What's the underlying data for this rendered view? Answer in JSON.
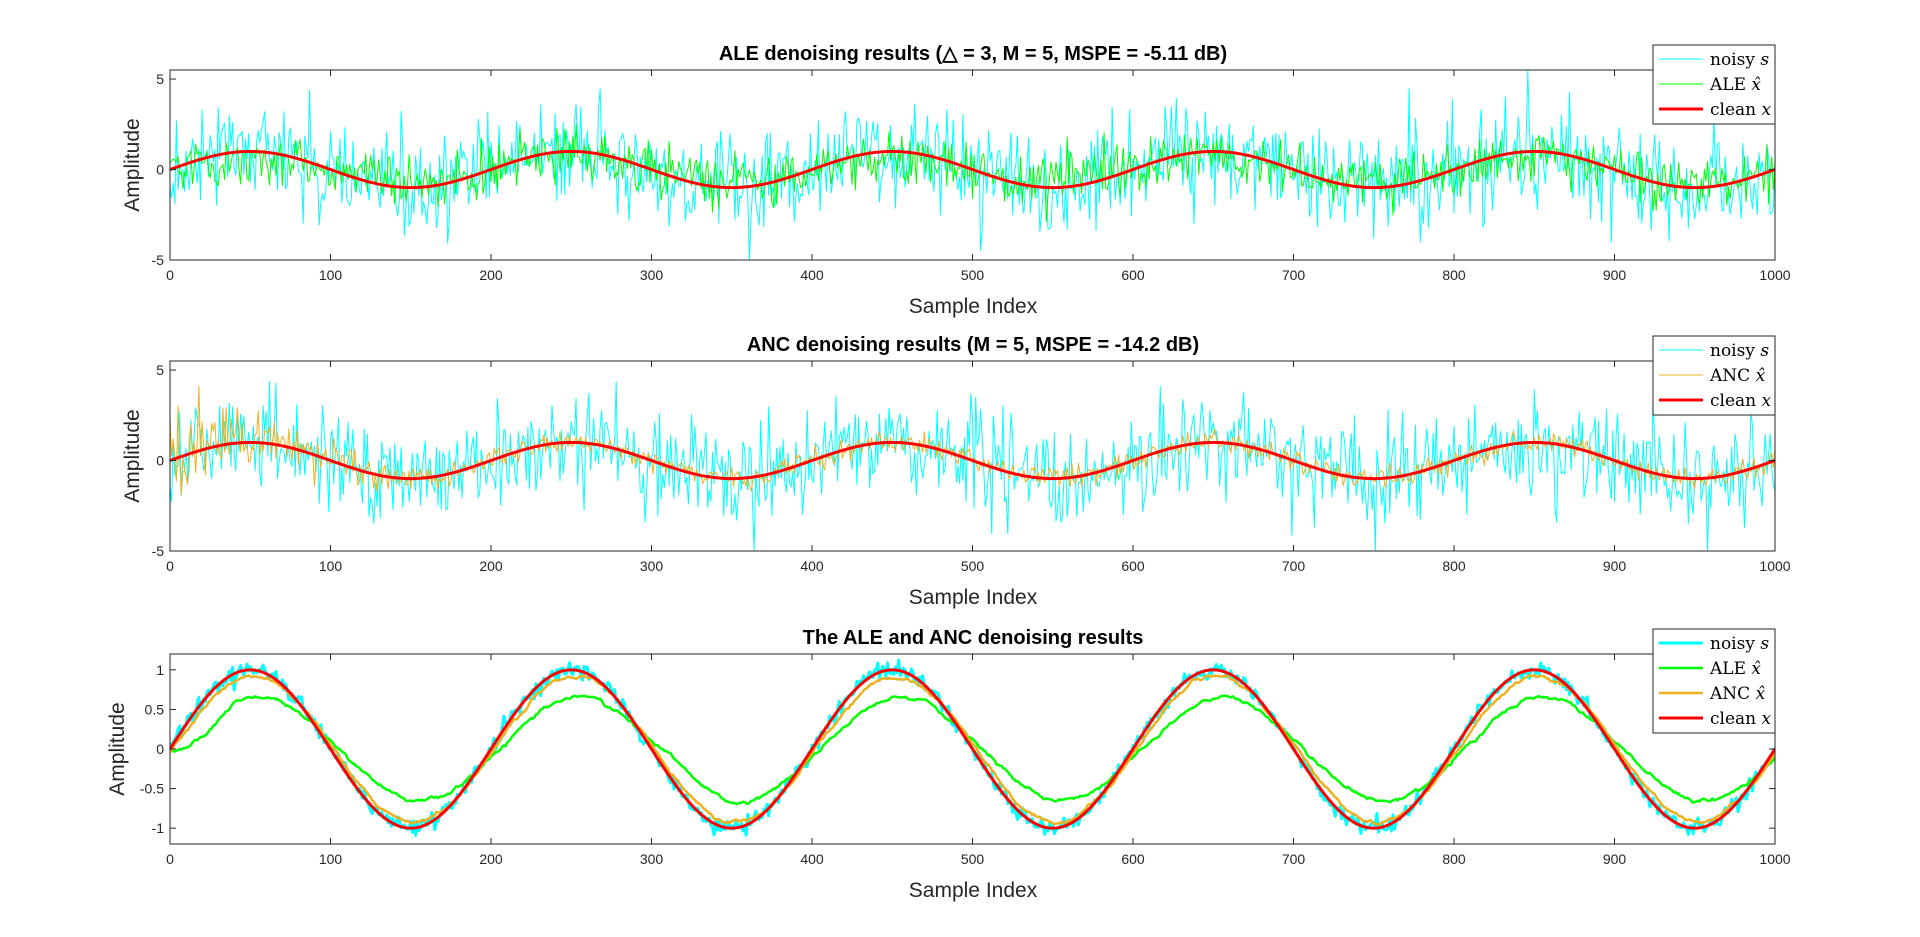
{
  "window": {
    "background": "#ffffff"
  },
  "chart_data": [
    {
      "type": "line",
      "title": "ALE denoising results (△ = 3, M = 5, MSPE = -5.11 dB)",
      "xlabel": "Sample Index",
      "ylabel": "Amplitude",
      "xlim": [
        0,
        1000
      ],
      "ylim": [
        -5,
        5.5
      ],
      "xticks": [
        0,
        100,
        200,
        300,
        400,
        500,
        600,
        700,
        800,
        900,
        1000
      ],
      "yticks": [
        -5,
        0,
        5
      ],
      "legend_position": "top-right",
      "grid": false,
      "series": [
        {
          "name": "noisy s",
          "legend_label": "noisy",
          "legend_var": "s",
          "color": "#00ffff",
          "width": 1,
          "kind": "noisy",
          "noise_std": 1.4
        },
        {
          "name": "ALE x̂",
          "legend_label": "ALE",
          "legend_var": "x̂",
          "color": "#00ff00",
          "width": 1,
          "kind": "ale_noisy",
          "gain": 0.65,
          "noise_std": 0.7
        },
        {
          "name": "clean x",
          "legend_label": "clean",
          "legend_var": "x",
          "color": "#ff0000",
          "width": 3,
          "kind": "clean"
        }
      ],
      "clean_signal": {
        "form": "sin(2*pi*n/200)",
        "amplitude": 1,
        "period": 200,
        "x_start": 0,
        "x_end": 1000
      }
    },
    {
      "type": "line",
      "title": "ANC denoising results (M = 5, MSPE = -14.2 dB)",
      "xlabel": "Sample Index",
      "ylabel": "Amplitude",
      "xlim": [
        0,
        1000
      ],
      "ylim": [
        -5,
        5.5
      ],
      "xticks": [
        0,
        100,
        200,
        300,
        400,
        500,
        600,
        700,
        800,
        900,
        1000
      ],
      "yticks": [
        -5,
        0,
        5
      ],
      "legend_position": "top-right",
      "grid": false,
      "series": [
        {
          "name": "noisy s",
          "legend_label": "noisy",
          "legend_var": "s",
          "color": "#00ffff",
          "width": 1,
          "kind": "noisy",
          "noise_std": 1.4
        },
        {
          "name": "ANC x̂",
          "legend_label": "ANC",
          "legend_var": "x̂",
          "color": "#edb120",
          "width": 1,
          "kind": "anc_noisy",
          "noise_std": 0.3,
          "initial_noise_std": 1.3
        },
        {
          "name": "clean x",
          "legend_label": "clean",
          "legend_var": "x",
          "color": "#ff0000",
          "width": 3,
          "kind": "clean"
        }
      ],
      "clean_signal": {
        "form": "sin(2*pi*n/200)",
        "amplitude": 1,
        "period": 200,
        "x_start": 0,
        "x_end": 1000
      }
    },
    {
      "type": "line",
      "title": "The ALE and ANC denoising results",
      "xlabel": "Sample Index",
      "ylabel": "Amplitude",
      "xlim": [
        0,
        1000
      ],
      "ylim": [
        -1.2,
        1.2
      ],
      "xticks": [
        0,
        100,
        200,
        300,
        400,
        500,
        600,
        700,
        800,
        900,
        1000
      ],
      "yticks": [
        -1,
        -0.5,
        0,
        0.5,
        1
      ],
      "legend_position": "top-right",
      "grid": false,
      "series": [
        {
          "name": "noisy s",
          "legend_label": "noisy",
          "legend_var": "s",
          "color": "#00ffff",
          "width": 3,
          "kind": "smooth_noisy",
          "noise_std": 0.05
        },
        {
          "name": "ALE x̂",
          "legend_label": "ALE",
          "legend_var": "x̂",
          "color": "#00ff00",
          "width": 2.5,
          "kind": "ale_smooth",
          "gain": 0.65,
          "noise_std": 0.03
        },
        {
          "name": "ANC x̂",
          "legend_label": "ANC",
          "legend_var": "x̂",
          "color": "#edb120",
          "width": 2.5,
          "kind": "anc_smooth",
          "gain": 0.92,
          "noise_std": 0.02
        },
        {
          "name": "clean x",
          "legend_label": "clean",
          "legend_var": "x",
          "color": "#ff0000",
          "width": 3,
          "kind": "clean"
        }
      ],
      "clean_signal": {
        "form": "sin(2*pi*n/200)",
        "amplitude": 1,
        "period": 200,
        "x_start": 0,
        "x_end": 1000
      }
    }
  ]
}
